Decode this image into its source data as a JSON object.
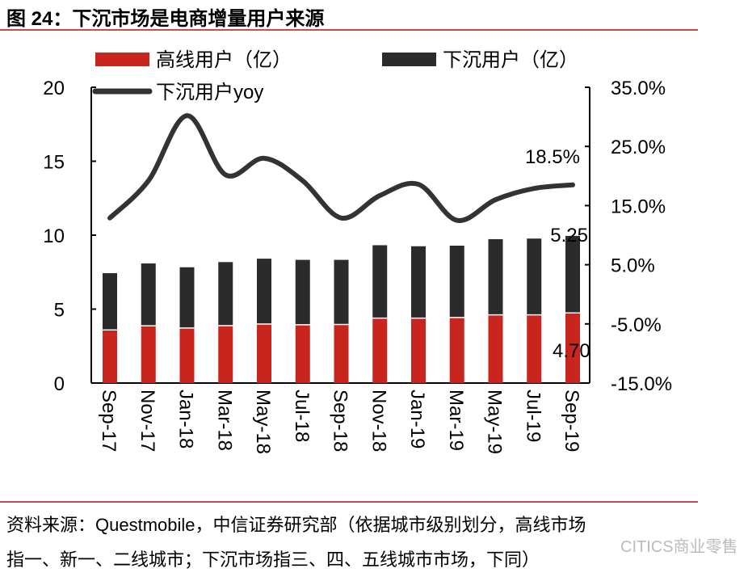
{
  "title": "图 24：下沉市场是电商增量用户来源",
  "footer": {
    "line1": "资料来源：Questmobile，中信证券研究部（依据城市级别划分，高线市场",
    "line2": "指一、新一、二线城市；下沉市场指三、四、五线城市市场，下同）"
  },
  "watermark": "CITICS商业零售",
  "chart_data": {
    "type": "bar",
    "stacked": true,
    "categories": [
      "Sep-17",
      "Nov-17",
      "Jan-18",
      "Mar-18",
      "May-18",
      "Jul-18",
      "Sep-18",
      "Nov-18",
      "Jan-19",
      "Mar-19",
      "May-19",
      "Jul-19",
      "Sep-19"
    ],
    "series": [
      {
        "name": "高线用户（亿）",
        "type": "bar",
        "axis": "left",
        "color": "#c8251f",
        "values": [
          3.55,
          3.83,
          3.68,
          3.84,
          3.95,
          3.9,
          3.92,
          4.35,
          4.35,
          4.39,
          4.57,
          4.57,
          4.7
        ]
      },
      {
        "name": "下沉用户（亿）",
        "type": "bar",
        "axis": "left",
        "color": "#2b2b2b",
        "values": [
          3.88,
          4.26,
          4.15,
          4.34,
          4.46,
          4.43,
          4.41,
          4.97,
          4.9,
          4.9,
          5.16,
          5.2,
          5.25
        ]
      },
      {
        "name": "下沉用户yoy",
        "type": "line",
        "axis": "right",
        "color": "#333333",
        "unit": "%",
        "values": [
          12.9,
          19.2,
          30.2,
          20.2,
          23.0,
          19.2,
          12.9,
          16.7,
          18.6,
          12.5,
          16.0,
          17.9,
          18.5
        ]
      }
    ],
    "data_labels": {
      "bar_red_last": "4.70",
      "bar_black_last": "5.25",
      "line_last": "18.5%"
    },
    "y_left": {
      "lim": [
        0,
        20
      ],
      "ticks": [
        "0",
        "5",
        "10",
        "15",
        "20"
      ]
    },
    "y_right": {
      "lim": [
        -15,
        35
      ],
      "ticks": [
        "-15.0%",
        "-5.0%",
        "5.0%",
        "15.0%",
        "25.0%",
        "35.0%"
      ]
    },
    "legend": "top",
    "grid": false
  }
}
